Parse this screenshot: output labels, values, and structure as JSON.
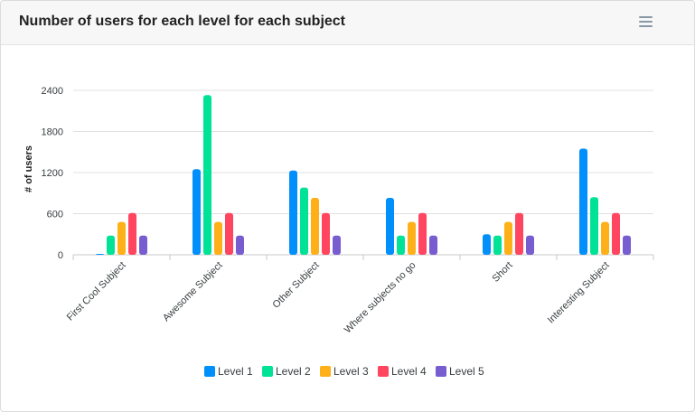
{
  "card": {
    "title": "Number of users for each level for each subject",
    "menu_icon": "hamburger-menu-icon"
  },
  "chart_data": {
    "type": "bar",
    "title": "",
    "xlabel": "",
    "ylabel": "# of users",
    "ylim": [
      0,
      2400
    ],
    "yticks": [
      0,
      600,
      1200,
      1800,
      2400
    ],
    "grid": true,
    "legend_position": "bottom",
    "categories": [
      "First Cool Subject",
      "Awesome Subject",
      "Other Subject",
      "Where subjects no go",
      "Short",
      "Interesting Subject"
    ],
    "series": [
      {
        "name": "Level 1",
        "color": "#008ffb",
        "values": [
          10,
          1250,
          1230,
          830,
          300,
          1550
        ]
      },
      {
        "name": "Level 2",
        "color": "#00e396",
        "values": [
          280,
          2330,
          980,
          280,
          280,
          840
        ]
      },
      {
        "name": "Level 3",
        "color": "#feb019",
        "values": [
          480,
          480,
          830,
          480,
          480,
          480
        ]
      },
      {
        "name": "Level 4",
        "color": "#ff4560",
        "values": [
          610,
          610,
          610,
          610,
          610,
          610
        ]
      },
      {
        "name": "Level 5",
        "color": "#775dd0",
        "values": [
          280,
          280,
          280,
          280,
          280,
          280
        ]
      }
    ]
  }
}
